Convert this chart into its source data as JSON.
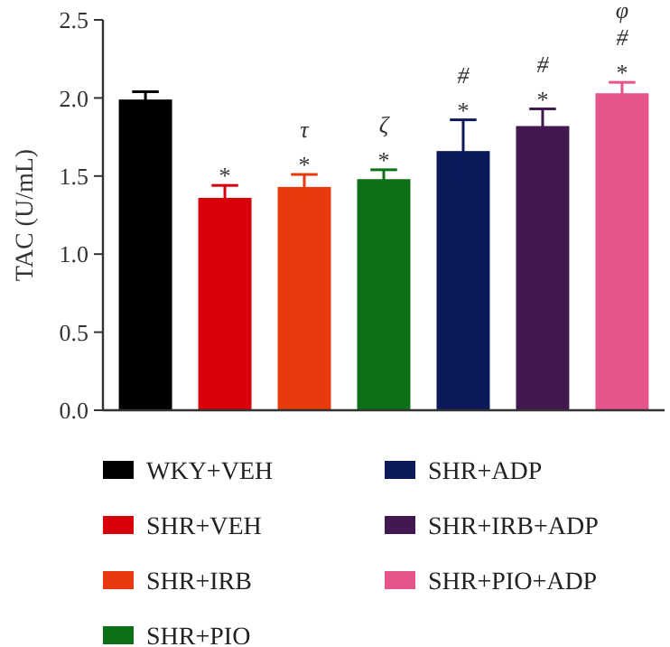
{
  "chart_data": {
    "type": "bar",
    "ylabel": "TAC (U/mL)",
    "categories": [
      null,
      null,
      null,
      null,
      null,
      null,
      null
    ],
    "series": [
      {
        "name": "WKY+VEH",
        "color": "#000000",
        "values": [
          1.99,
          null,
          null,
          null,
          null,
          null,
          null
        ],
        "errors": [
          0.05,
          null,
          null,
          null,
          null,
          null,
          null
        ]
      },
      {
        "name": "SHR+VEH",
        "color": "#d9000a",
        "values": [
          null,
          1.36,
          null,
          null,
          null,
          null,
          null
        ],
        "errors": [
          null,
          0.08,
          null,
          null,
          null,
          null,
          null
        ]
      },
      {
        "name": "SHR+IRB",
        "color": "#e83a0c",
        "values": [
          null,
          null,
          1.43,
          null,
          null,
          null,
          null
        ],
        "errors": [
          null,
          null,
          0.08,
          null,
          null,
          null,
          null
        ]
      },
      {
        "name": "SHR+PIO",
        "color": "#0b7016",
        "values": [
          null,
          null,
          null,
          1.48,
          null,
          null,
          null
        ],
        "errors": [
          null,
          null,
          null,
          0.06,
          null,
          null,
          null
        ]
      },
      {
        "name": "SHR+ADP",
        "color": "#0c1a5c",
        "values": [
          null,
          null,
          null,
          null,
          1.66,
          null,
          null
        ],
        "errors": [
          null,
          null,
          null,
          null,
          0.2,
          null,
          null
        ]
      },
      {
        "name": "SHR+IRB+ADP",
        "color": "#431752",
        "values": [
          null,
          null,
          null,
          null,
          null,
          1.82,
          null
        ],
        "errors": [
          null,
          null,
          null,
          null,
          null,
          0.11,
          null
        ]
      },
      {
        "name": "SHR+PIO+ADP",
        "color": "#e5548a",
        "values": [
          null,
          null,
          null,
          null,
          null,
          null,
          2.03
        ],
        "errors": [
          null,
          null,
          null,
          null,
          null,
          null,
          0.07
        ]
      }
    ],
    "ylim": [
      0,
      2.5
    ],
    "yticks": [
      {
        "value": 0,
        "label": "0.0"
      },
      {
        "value": 0.5,
        "label": "0.5"
      },
      {
        "value": 1,
        "label": "1.0"
      },
      {
        "value": 1.5,
        "label": "1.5"
      },
      {
        "value": 2,
        "label": "2.0"
      },
      {
        "value": 2.5,
        "label": "2.5"
      }
    ],
    "tick_labels": "y",
    "legend": "bottom",
    "annotations": [
      "*",
      "*",
      "τ",
      "*",
      "ζ",
      "*",
      "#",
      "*",
      "#",
      "*",
      "#",
      "φ"
    ]
  }
}
